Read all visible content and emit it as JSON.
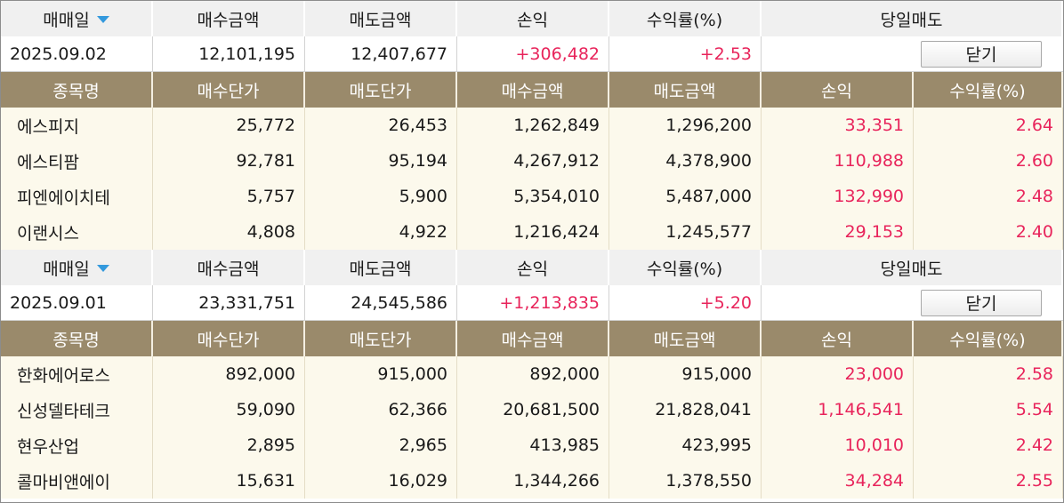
{
  "summary_headers": {
    "trade_date": "매매일",
    "buy_amount": "매수금액",
    "sell_amount": "매도금액",
    "pnl": "손익",
    "return_rate": "수익률(%)",
    "same_day_sell": "당일매도"
  },
  "detail_headers": {
    "stock_name": "종목명",
    "buy_price": "매수단가",
    "sell_price": "매도단가",
    "buy_amount": "매수금액",
    "sell_amount": "매도금액",
    "pnl": "손익",
    "return_rate": "수익률(%)"
  },
  "close_label": "닫기",
  "colors": {
    "profit": "#e8245b",
    "detail_header_bg": "#9a8a6b",
    "detail_row_bg": "#fcf9ec",
    "summary_header_bg": "#f0f0f0",
    "sort_arrow": "#3399dd"
  },
  "icons": {
    "sort": "sort-down-triangle-icon"
  },
  "groups": [
    {
      "date": "2025.09.02",
      "buy_amount": "12,101,195",
      "sell_amount": "12,407,677",
      "pnl": "+306,482",
      "return_rate": "+2.53",
      "items": [
        {
          "name": "에스피지",
          "buy_price": "25,772",
          "sell_price": "26,453",
          "buy_amount": "1,262,849",
          "sell_amount": "1,296,200",
          "pnl": "33,351",
          "rate": "2.64"
        },
        {
          "name": "에스티팜",
          "buy_price": "92,781",
          "sell_price": "95,194",
          "buy_amount": "4,267,912",
          "sell_amount": "4,378,900",
          "pnl": "110,988",
          "rate": "2.60"
        },
        {
          "name": "피엔에이치테",
          "buy_price": "5,757",
          "sell_price": "5,900",
          "buy_amount": "5,354,010",
          "sell_amount": "5,487,000",
          "pnl": "132,990",
          "rate": "2.48"
        },
        {
          "name": "이랜시스",
          "buy_price": "4,808",
          "sell_price": "4,922",
          "buy_amount": "1,216,424",
          "sell_amount": "1,245,577",
          "pnl": "29,153",
          "rate": "2.40"
        }
      ]
    },
    {
      "date": "2025.09.01",
      "buy_amount": "23,331,751",
      "sell_amount": "24,545,586",
      "pnl": "+1,213,835",
      "return_rate": "+5.20",
      "items": [
        {
          "name": "한화에어로스",
          "buy_price": "892,000",
          "sell_price": "915,000",
          "buy_amount": "892,000",
          "sell_amount": "915,000",
          "pnl": "23,000",
          "rate": "2.58"
        },
        {
          "name": "신성델타테크",
          "buy_price": "59,090",
          "sell_price": "62,366",
          "buy_amount": "20,681,500",
          "sell_amount": "21,828,041",
          "pnl": "1,146,541",
          "rate": "5.54"
        },
        {
          "name": "현우산업",
          "buy_price": "2,895",
          "sell_price": "2,965",
          "buy_amount": "413,985",
          "sell_amount": "423,995",
          "pnl": "10,010",
          "rate": "2.42"
        },
        {
          "name": "콜마비앤에이",
          "buy_price": "15,631",
          "sell_price": "16,029",
          "buy_amount": "1,344,266",
          "sell_amount": "1,378,550",
          "pnl": "34,284",
          "rate": "2.55"
        }
      ]
    }
  ]
}
